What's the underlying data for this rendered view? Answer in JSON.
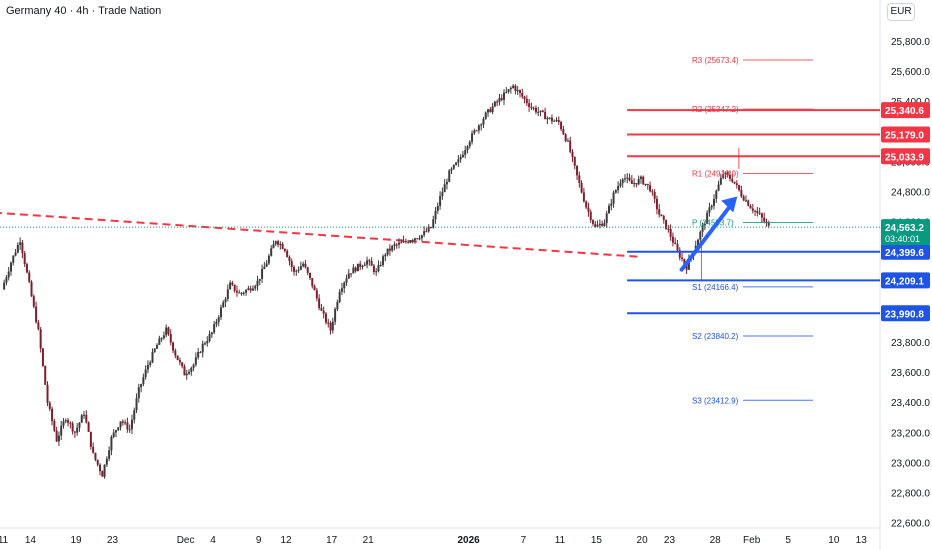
{
  "header": {
    "title": "Germany 40 · 4h · Trade Nation",
    "currency": "EUR"
  },
  "colors": {
    "up": "#26a69a",
    "down": "#ef5350",
    "candle_up": "#3b3b3b",
    "candle_down": "#7b1f2e",
    "resistance": "#f23645",
    "support": "#1e53e5",
    "pivot_label": "#089981",
    "trend": "#f23645",
    "arrow": "#2962ff",
    "last_price": "#089981"
  },
  "chart_data": {
    "type": "candlestick",
    "title": "Germany 40 · 4h · Trade Nation",
    "currency": "EUR",
    "ylim": [
      22500,
      26020
    ],
    "y_ticks": [
      22600,
      22800,
      23000,
      23200,
      23400,
      23600,
      23800,
      24000,
      24200,
      24400,
      24600,
      24800,
      25000,
      25200,
      25400,
      25600,
      25800
    ],
    "y_tick_labels": [
      "22,600.0",
      "22,800.0",
      "23,000.0",
      "23,200.0",
      "23,400.0",
      "23,600.0",
      "23,800.0",
      "24,000.0",
      "24,200.0",
      "24,400.0",
      "24,600.0",
      "24,800.0",
      "25,000.0",
      "25,200.0",
      "25,400.0",
      "25,600.0",
      "25,800.0"
    ],
    "x_labels": [
      {
        "label": "11",
        "day": 0
      },
      {
        "label": "14",
        "day": 3
      },
      {
        "label": "19",
        "day": 8
      },
      {
        "label": "23",
        "day": 12
      },
      {
        "label": "Dec",
        "day": 20
      },
      {
        "label": "4",
        "day": 23
      },
      {
        "label": "9",
        "day": 28
      },
      {
        "label": "12",
        "day": 31
      },
      {
        "label": "17",
        "day": 36
      },
      {
        "label": "21",
        "day": 40
      },
      {
        "label": "2026",
        "day": 51
      },
      {
        "label": "7",
        "day": 57
      },
      {
        "label": "11",
        "day": 61
      },
      {
        "label": "15",
        "day": 65
      },
      {
        "label": "20",
        "day": 70
      },
      {
        "label": "23",
        "day": 73
      },
      {
        "label": "28",
        "day": 78
      },
      {
        "label": "Feb",
        "day": 82
      },
      {
        "label": "5",
        "day": 86
      },
      {
        "label": "10",
        "day": 91
      },
      {
        "label": "13",
        "day": 94
      }
    ],
    "price_path": [
      [
        0,
        24150
      ],
      [
        1,
        24330
      ],
      [
        2,
        24480
      ],
      [
        3,
        24180
      ],
      [
        4,
        23870
      ],
      [
        5,
        23400
      ],
      [
        6,
        23150
      ],
      [
        7,
        23300
      ],
      [
        8,
        23200
      ],
      [
        9,
        23330
      ],
      [
        10,
        23050
      ],
      [
        11,
        22920
      ],
      [
        12,
        23160
      ],
      [
        13,
        23280
      ],
      [
        14,
        23220
      ],
      [
        15,
        23480
      ],
      [
        16,
        23650
      ],
      [
        17,
        23780
      ],
      [
        18,
        23880
      ],
      [
        19,
        23720
      ],
      [
        20,
        23590
      ],
      [
        21,
        23650
      ],
      [
        22,
        23780
      ],
      [
        23,
        23860
      ],
      [
        24,
        24020
      ],
      [
        25,
        24180
      ],
      [
        26,
        24120
      ],
      [
        27,
        24150
      ],
      [
        28,
        24200
      ],
      [
        29,
        24330
      ],
      [
        30,
        24480
      ],
      [
        31,
        24420
      ],
      [
        32,
        24260
      ],
      [
        33,
        24320
      ],
      [
        34,
        24180
      ],
      [
        35,
        24000
      ],
      [
        36,
        23880
      ],
      [
        37,
        24150
      ],
      [
        38,
        24260
      ],
      [
        39,
        24300
      ],
      [
        40,
        24340
      ],
      [
        41,
        24260
      ],
      [
        42,
        24390
      ],
      [
        43,
        24440
      ],
      [
        44,
        24460
      ],
      [
        45,
        24490
      ],
      [
        46,
        24510
      ],
      [
        47,
        24560
      ],
      [
        48,
        24760
      ],
      [
        49,
        24920
      ],
      [
        50,
        25000
      ],
      [
        51,
        25120
      ],
      [
        52,
        25220
      ],
      [
        53,
        25310
      ],
      [
        54,
        25380
      ],
      [
        55,
        25440
      ],
      [
        56,
        25500
      ],
      [
        57,
        25430
      ],
      [
        58,
        25360
      ],
      [
        59,
        25320
      ],
      [
        60,
        25280
      ],
      [
        61,
        25260
      ],
      [
        62,
        25120
      ],
      [
        63,
        24900
      ],
      [
        64,
        24700
      ],
      [
        65,
        24560
      ],
      [
        66,
        24600
      ],
      [
        67,
        24780
      ],
      [
        68,
        24900
      ],
      [
        69,
        24850
      ],
      [
        70,
        24880
      ],
      [
        71,
        24820
      ],
      [
        72,
        24650
      ],
      [
        73,
        24540
      ],
      [
        74,
        24400
      ],
      [
        75,
        24300
      ],
      [
        76,
        24450
      ],
      [
        77,
        24600
      ],
      [
        78,
        24760
      ],
      [
        79,
        24920
      ],
      [
        80,
        24880
      ],
      [
        81,
        24780
      ],
      [
        82,
        24700
      ],
      [
        83,
        24640
      ],
      [
        84,
        24563
      ]
    ],
    "last_price": "24,563.2",
    "countdown": "03:40:01",
    "price_labels": [
      {
        "label": "25,340.6",
        "value": 25340.6,
        "kind": "resistance",
        "line_from_day": 70
      },
      {
        "label": "25,179.0",
        "value": 25179.0,
        "kind": "resistance",
        "line_from_day": 70
      },
      {
        "label": "25,033.9",
        "value": 25033.9,
        "kind": "resistance",
        "line_from_day": 70
      },
      {
        "label": "24,399.6",
        "value": 24399.6,
        "kind": "support",
        "line_from_day": 70
      },
      {
        "label": "24,209.1",
        "value": 24209.1,
        "kind": "support",
        "line_from_day": 70
      },
      {
        "label": "23,990.8",
        "value": 23990.8,
        "kind": "support",
        "line_from_day": 70
      }
    ],
    "pivots": [
      {
        "label": "R3",
        "text": "(25673.4)",
        "value": 25673.4,
        "kind": "resistance"
      },
      {
        "label": "R2",
        "text": "(25347.2)",
        "value": 25347.2,
        "kind": "resistance"
      },
      {
        "label": "R1",
        "text": "(24919.9)",
        "value": 24919.9,
        "kind": "resistance"
      },
      {
        "label": "P",
        "text": "(24593.7)",
        "value": 24593.7,
        "kind": "pivot"
      },
      {
        "label": "S1",
        "text": "(24166.4)",
        "value": 24166.4,
        "kind": "support"
      },
      {
        "label": "S2",
        "text": "(23840.2)",
        "value": 23840.2,
        "kind": "support"
      },
      {
        "label": "S3",
        "text": "(23412.9)",
        "value": 23412.9,
        "kind": "support"
      }
    ],
    "trendline": {
      "from": [
        -1,
        24660
      ],
      "to": [
        70,
        24365
      ],
      "style": "dashed"
    },
    "arrow": {
      "from": [
        74,
        24360
      ],
      "to": [
        79,
        24700
      ]
    }
  }
}
